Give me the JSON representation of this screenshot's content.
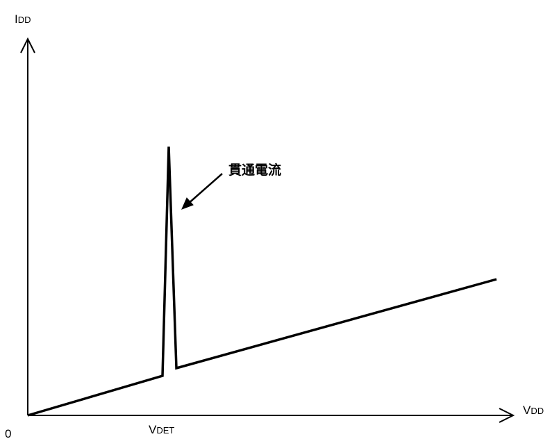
{
  "labels": {
    "y_axis_main": "I",
    "y_axis_sub": "DD",
    "x_axis_main": "V",
    "x_axis_sub": "DD",
    "origin": "0",
    "threshold_main": "V",
    "threshold_sub": "DET",
    "annotation": "貫通電流"
  },
  "colors": {
    "stroke": "#000000",
    "background": "#ffffff"
  }
}
